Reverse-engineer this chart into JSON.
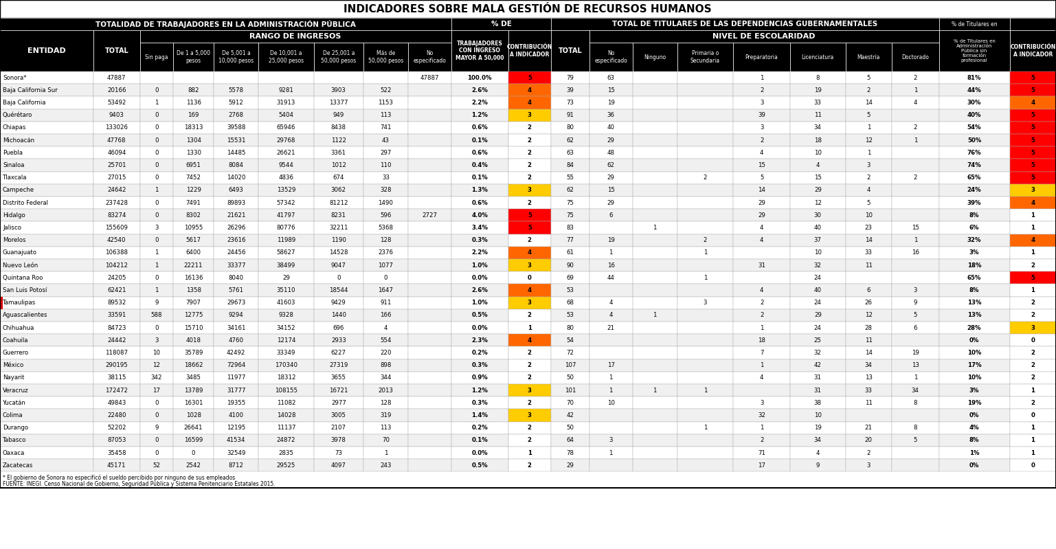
{
  "title": "INDICADORES SOBRE MALA GESTIÓN DE RECURSOS HUMANOS",
  "rows": [
    [
      "Sonora*",
      47887,
      "",
      "",
      "",
      "",
      "",
      "",
      47887,
      "100.0%",
      5,
      79,
      63,
      "",
      "",
      1,
      8,
      5,
      2,
      "81%",
      5
    ],
    [
      "Baja California Sur",
      20166,
      0,
      882,
      5578,
      9281,
      3903,
      522,
      "",
      "2.6%",
      4,
      39,
      15,
      "",
      "",
      2,
      19,
      2,
      1,
      "44%",
      5
    ],
    [
      "Baja California",
      53492,
      1,
      1136,
      5912,
      31913,
      13377,
      1153,
      "",
      "2.2%",
      4,
      73,
      19,
      "",
      "",
      3,
      33,
      14,
      4,
      "30%",
      4
    ],
    [
      "Quérétaro",
      9403,
      0,
      169,
      2768,
      5404,
      949,
      113,
      "",
      "1.2%",
      3,
      91,
      36,
      "",
      "",
      39,
      11,
      5,
      "",
      "40%",
      5
    ],
    [
      "Chiapas",
      133026,
      0,
      18313,
      39588,
      65946,
      8438,
      741,
      "",
      "0.6%",
      2,
      80,
      40,
      "",
      "",
      3,
      34,
      1,
      2,
      "54%",
      5
    ],
    [
      "Michoacán",
      47768,
      0,
      1304,
      15531,
      29768,
      1122,
      43,
      "",
      "0.1%",
      2,
      62,
      29,
      "",
      "",
      2,
      18,
      12,
      1,
      "50%",
      5
    ],
    [
      "Puebla",
      46094,
      0,
      1330,
      14485,
      26621,
      3361,
      297,
      "",
      "0.6%",
      2,
      63,
      48,
      "",
      "",
      4,
      10,
      1,
      "",
      "76%",
      5
    ],
    [
      "Sinaloa",
      25701,
      0,
      6951,
      8084,
      9544,
      1012,
      110,
      "",
      "0.4%",
      2,
      84,
      62,
      "",
      "",
      15,
      4,
      3,
      "",
      "74%",
      5
    ],
    [
      "Tlaxcala",
      27015,
      0,
      7452,
      14020,
      4836,
      674,
      33,
      "",
      "0.1%",
      2,
      55,
      29,
      "",
      2,
      5,
      15,
      2,
      2,
      "65%",
      5
    ],
    [
      "Campeche",
      24642,
      1,
      1229,
      6493,
      13529,
      3062,
      328,
      "",
      "1.3%",
      3,
      62,
      15,
      "",
      "",
      14,
      29,
      4,
      "",
      "24%",
      3
    ],
    [
      "Distrito Federal",
      237428,
      0,
      7491,
      89893,
      57342,
      81212,
      1490,
      "",
      "0.6%",
      2,
      75,
      29,
      "",
      "",
      29,
      12,
      5,
      "",
      "39%",
      4
    ],
    [
      "Hidalgo",
      83274,
      0,
      8302,
      21621,
      41797,
      8231,
      596,
      2727,
      "4.0%",
      5,
      75,
      6,
      "",
      "",
      29,
      30,
      10,
      "",
      "8%",
      1
    ],
    [
      "Jalisco",
      155609,
      3,
      10955,
      26296,
      80776,
      32211,
      5368,
      "",
      "3.4%",
      5,
      83,
      "",
      1,
      "",
      4,
      40,
      23,
      15,
      "6%",
      1
    ],
    [
      "Morelos",
      42540,
      0,
      5617,
      23616,
      11989,
      1190,
      128,
      "",
      "0.3%",
      2,
      77,
      19,
      "",
      2,
      4,
      37,
      14,
      1,
      "32%",
      4
    ],
    [
      "Guanajuato",
      106388,
      1,
      6400,
      24456,
      58627,
      14528,
      2376,
      "",
      "2.2%",
      4,
      61,
      1,
      "",
      1,
      "",
      10,
      33,
      16,
      "3%",
      1
    ],
    [
      "Nuevo León",
      104212,
      1,
      22211,
      33377,
      38499,
      9047,
      1077,
      "",
      "1.0%",
      3,
      90,
      16,
      "",
      "",
      31,
      32,
      11,
      "",
      "18%",
      2
    ],
    [
      "Quintana Roo",
      24205,
      0,
      16136,
      8040,
      29,
      0,
      0,
      "",
      "0.0%",
      0,
      69,
      44,
      "",
      1,
      "",
      24,
      "",
      "",
      "65%",
      5
    ],
    [
      "San Luis Potosí",
      62421,
      1,
      1358,
      5761,
      35110,
      18544,
      1647,
      "",
      "2.6%",
      4,
      53,
      "",
      "",
      "",
      4,
      40,
      6,
      3,
      "8%",
      1
    ],
    [
      "Tamaulipas",
      89532,
      9,
      7907,
      29673,
      41603,
      9429,
      911,
      "",
      "1.0%",
      3,
      68,
      4,
      "",
      3,
      2,
      24,
      26,
      9,
      "13%",
      2
    ],
    [
      "Aguascalientes",
      33591,
      588,
      12775,
      9294,
      9328,
      1440,
      166,
      "",
      "0.5%",
      2,
      53,
      4,
      1,
      "",
      2,
      29,
      12,
      5,
      "13%",
      2
    ],
    [
      "Chihuahua",
      84723,
      0,
      15710,
      34161,
      34152,
      696,
      4,
      "",
      "0.0%",
      1,
      80,
      21,
      "",
      "",
      1,
      24,
      28,
      6,
      "28%",
      3
    ],
    [
      "Coahuila",
      24442,
      3,
      4018,
      4760,
      12174,
      2933,
      554,
      "",
      "2.3%",
      4,
      54,
      "",
      "",
      "",
      18,
      25,
      11,
      "",
      "0%",
      0
    ],
    [
      "Guerrero",
      118087,
      10,
      35789,
      42492,
      33349,
      6227,
      220,
      "",
      "0.2%",
      2,
      72,
      "",
      "",
      "",
      7,
      32,
      14,
      19,
      "10%",
      2
    ],
    [
      "México",
      290195,
      12,
      18662,
      72964,
      170340,
      27319,
      898,
      "",
      "0.3%",
      2,
      107,
      17,
      "",
      "",
      1,
      42,
      34,
      13,
      "17%",
      2
    ],
    [
      "Nayarit",
      38115,
      342,
      3485,
      11977,
      18312,
      3655,
      344,
      "",
      "0.9%",
      2,
      50,
      1,
      "",
      "",
      4,
      31,
      13,
      1,
      "10%",
      2
    ],
    [
      "Veracruz",
      172472,
      17,
      13789,
      31777,
      108155,
      16721,
      2013,
      "",
      "1.2%",
      3,
      101,
      1,
      1,
      1,
      "",
      31,
      33,
      34,
      "3%",
      1
    ],
    [
      "Yucatán",
      49843,
      0,
      16301,
      19355,
      11082,
      2977,
      128,
      "",
      "0.3%",
      2,
      70,
      10,
      "",
      "",
      3,
      38,
      11,
      8,
      "19%",
      2
    ],
    [
      "Colima",
      22480,
      0,
      1028,
      4100,
      14028,
      3005,
      319,
      "",
      "1.4%",
      3,
      42,
      "",
      "",
      "",
      32,
      10,
      "",
      "",
      "0%",
      0
    ],
    [
      "Durango",
      52202,
      9,
      26641,
      12195,
      11137,
      2107,
      113,
      "",
      "0.2%",
      2,
      50,
      "",
      "",
      1,
      1,
      19,
      21,
      8,
      "4%",
      1
    ],
    [
      "Tabasco",
      87053,
      0,
      16599,
      41534,
      24872,
      3978,
      70,
      "",
      "0.1%",
      2,
      64,
      3,
      "",
      "",
      2,
      34,
      20,
      5,
      "8%",
      1
    ],
    [
      "Oaxaca",
      35458,
      0,
      0,
      32549,
      2835,
      73,
      1,
      "",
      "0.0%",
      1,
      78,
      1,
      "",
      "",
      71,
      4,
      2,
      "",
      "1%",
      1
    ],
    [
      "Zacatecas",
      45171,
      52,
      2542,
      8712,
      29525,
      4097,
      243,
      "",
      "0.5%",
      2,
      29,
      "",
      "",
      "",
      17,
      9,
      3,
      "",
      "0%",
      0
    ]
  ],
  "footnote": "* El gobierno de Sonora no especificó el sueldo percibido por ninguno de sus empleados",
  "source": "FUENTE: INEGI. Censo Nacional de Gobierno, Seguridad Pública y Sistema Penitenciario Estatales 2015.",
  "contrib_colors": {
    "5": "#ff0000",
    "4": "#ff6600",
    "3": "#ffcc00",
    "2": "#ffffff",
    "1": "#ffffff",
    "0": "#ffffff"
  }
}
